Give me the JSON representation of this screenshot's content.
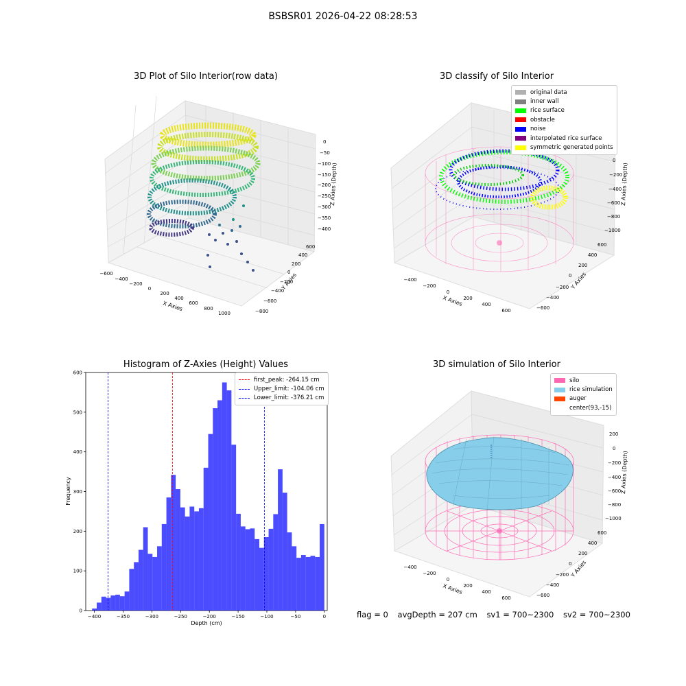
{
  "figure": {
    "suptitle": "BSBSR01 2026-04-22 08:28:53",
    "footer": {
      "flag": "flag = 0",
      "avg_depth": "avgDepth = 207 cm",
      "sv1": "sv1 = 700~2300",
      "sv2": "sv2 = 700~2300"
    }
  },
  "chart_data": [
    {
      "type": "scatter",
      "projection": "3d",
      "title": "3D Plot of Silo Interior(row data)",
      "xlabel": "X Axies",
      "ylabel": "Y Axies",
      "zlabel": "Z Axies (Depth)",
      "x_ticks": [
        "−600",
        "−400",
        "−200",
        "0",
        "200",
        "400",
        "600",
        "800",
        "1000"
      ],
      "y_ticks": [
        "−800",
        "−600",
        "−400",
        "−200",
        "0",
        "200",
        "400",
        "600"
      ],
      "z_ticks": [
        "0",
        "−50",
        "−100",
        "−150",
        "−200",
        "−250",
        "−300",
        "−350",
        "−400"
      ],
      "colormap": "viridis",
      "grid": true
    },
    {
      "type": "scatter",
      "projection": "3d",
      "title": "3D classify of Silo Interior",
      "xlabel": "X Axies",
      "ylabel": "Y Axies",
      "zlabel": "Z Axies (Depth)",
      "x_ticks": [
        "−400",
        "−200",
        "0",
        "200",
        "400",
        "600"
      ],
      "y_ticks": [
        "−600",
        "−400",
        "−200",
        "0",
        "200",
        "400",
        "600"
      ],
      "z_ticks": [
        "0",
        "−200",
        "−400",
        "−600",
        "−800",
        "−1000"
      ],
      "legend_position": "top-right",
      "legend": [
        {
          "label": "original data",
          "color": "#b0b0b0"
        },
        {
          "label": "inner wall",
          "color": "#808080"
        },
        {
          "label": "rice surface",
          "color": "#00ff00"
        },
        {
          "label": "obstacle",
          "color": "#ff0000"
        },
        {
          "label": "noise",
          "color": "#0000ff"
        },
        {
          "label": "interpolated rice surface",
          "color": "#800080"
        },
        {
          "label": "symmetric generated points",
          "color": "#ffff00"
        }
      ],
      "grid": true
    },
    {
      "type": "bar",
      "title": "Histogram of Z-Axies (Height) Values",
      "xlabel": "Depth (cm)",
      "ylabel": "Frequency",
      "xlim": [
        -415,
        5
      ],
      "ylim": [
        0,
        600
      ],
      "x_ticks": [
        "−400",
        "−350",
        "−300",
        "−250",
        "−200",
        "−150",
        "−100",
        "−50",
        "0"
      ],
      "y_ticks": [
        "0",
        "100",
        "200",
        "300",
        "400",
        "500",
        "600"
      ],
      "bin_start": -404,
      "bin_width": 8.08,
      "values": [
        5,
        20,
        35,
        32,
        38,
        40,
        36,
        48,
        105,
        122,
        153,
        210,
        143,
        135,
        162,
        218,
        285,
        342,
        306,
        260,
        237,
        262,
        250,
        258,
        360,
        445,
        510,
        530,
        575,
        555,
        418,
        244,
        212,
        205,
        207,
        180,
        158,
        185,
        206,
        243,
        356,
        297,
        197,
        162,
        133,
        140,
        135,
        138,
        135,
        218
      ],
      "bar_color": "#0000ff",
      "vlines": [
        {
          "label": "first_peak: -264.15 cm",
          "x": -264.15,
          "color": "#ff0000"
        },
        {
          "label": "Upper_limit: -104.06 cm",
          "x": -104.06,
          "color": "#0000ff"
        },
        {
          "label": "Lower_limit: -376.21 cm",
          "x": -376.21,
          "color": "#0000ff"
        }
      ],
      "legend_position": "top-right"
    },
    {
      "type": "surface",
      "projection": "3d",
      "title": "3D simulation of Silo Interior",
      "xlabel": "X Axies",
      "ylabel": "Y Axies",
      "zlabel": "Z Axies (Depth)",
      "x_ticks": [
        "−400",
        "−200",
        "0",
        "200",
        "400",
        "600"
      ],
      "y_ticks": [
        "−600",
        "−400",
        "−200",
        "0",
        "200",
        "400",
        "600"
      ],
      "z_ticks": [
        "200",
        "0",
        "−200",
        "−400",
        "−600",
        "−800",
        "−1000"
      ],
      "legend_position": "top-right",
      "legend": [
        {
          "label": "silo",
          "color": "#ff69b4"
        },
        {
          "label": "rice simulation",
          "color": "#87ceeb"
        },
        {
          "label": "auger",
          "color": "#ff4500"
        },
        {
          "label": "center(93,-15)",
          "color": "#ffffff"
        }
      ],
      "grid": true
    }
  ]
}
